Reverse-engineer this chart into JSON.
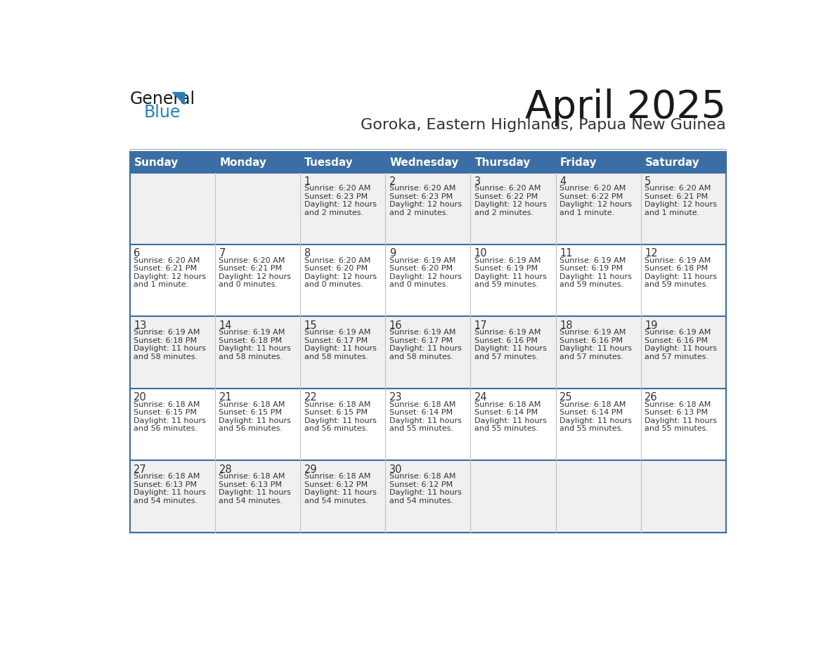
{
  "title": "April 2025",
  "subtitle": "Goroka, Eastern Highlands, Papua New Guinea",
  "header_bg_color": "#3a6ea5",
  "header_text_color": "#ffffff",
  "row_bg_colors": [
    "#f0f0f0",
    "#ffffff",
    "#f0f0f0",
    "#ffffff",
    "#f0f0f0"
  ],
  "border_color": "#3a6ea5",
  "cell_line_color": "#bbbbbb",
  "days_of_week": [
    "Sunday",
    "Monday",
    "Tuesday",
    "Wednesday",
    "Thursday",
    "Friday",
    "Saturday"
  ],
  "calendar": [
    [
      {
        "day": "",
        "lines": []
      },
      {
        "day": "",
        "lines": []
      },
      {
        "day": "1",
        "lines": [
          "Sunrise: 6:20 AM",
          "Sunset: 6:23 PM",
          "Daylight: 12 hours",
          "and 2 minutes."
        ]
      },
      {
        "day": "2",
        "lines": [
          "Sunrise: 6:20 AM",
          "Sunset: 6:23 PM",
          "Daylight: 12 hours",
          "and 2 minutes."
        ]
      },
      {
        "day": "3",
        "lines": [
          "Sunrise: 6:20 AM",
          "Sunset: 6:22 PM",
          "Daylight: 12 hours",
          "and 2 minutes."
        ]
      },
      {
        "day": "4",
        "lines": [
          "Sunrise: 6:20 AM",
          "Sunset: 6:22 PM",
          "Daylight: 12 hours",
          "and 1 minute."
        ]
      },
      {
        "day": "5",
        "lines": [
          "Sunrise: 6:20 AM",
          "Sunset: 6:21 PM",
          "Daylight: 12 hours",
          "and 1 minute."
        ]
      }
    ],
    [
      {
        "day": "6",
        "lines": [
          "Sunrise: 6:20 AM",
          "Sunset: 6:21 PM",
          "Daylight: 12 hours",
          "and 1 minute."
        ]
      },
      {
        "day": "7",
        "lines": [
          "Sunrise: 6:20 AM",
          "Sunset: 6:21 PM",
          "Daylight: 12 hours",
          "and 0 minutes."
        ]
      },
      {
        "day": "8",
        "lines": [
          "Sunrise: 6:20 AM",
          "Sunset: 6:20 PM",
          "Daylight: 12 hours",
          "and 0 minutes."
        ]
      },
      {
        "day": "9",
        "lines": [
          "Sunrise: 6:19 AM",
          "Sunset: 6:20 PM",
          "Daylight: 12 hours",
          "and 0 minutes."
        ]
      },
      {
        "day": "10",
        "lines": [
          "Sunrise: 6:19 AM",
          "Sunset: 6:19 PM",
          "Daylight: 11 hours",
          "and 59 minutes."
        ]
      },
      {
        "day": "11",
        "lines": [
          "Sunrise: 6:19 AM",
          "Sunset: 6:19 PM",
          "Daylight: 11 hours",
          "and 59 minutes."
        ]
      },
      {
        "day": "12",
        "lines": [
          "Sunrise: 6:19 AM",
          "Sunset: 6:18 PM",
          "Daylight: 11 hours",
          "and 59 minutes."
        ]
      }
    ],
    [
      {
        "day": "13",
        "lines": [
          "Sunrise: 6:19 AM",
          "Sunset: 6:18 PM",
          "Daylight: 11 hours",
          "and 58 minutes."
        ]
      },
      {
        "day": "14",
        "lines": [
          "Sunrise: 6:19 AM",
          "Sunset: 6:18 PM",
          "Daylight: 11 hours",
          "and 58 minutes."
        ]
      },
      {
        "day": "15",
        "lines": [
          "Sunrise: 6:19 AM",
          "Sunset: 6:17 PM",
          "Daylight: 11 hours",
          "and 58 minutes."
        ]
      },
      {
        "day": "16",
        "lines": [
          "Sunrise: 6:19 AM",
          "Sunset: 6:17 PM",
          "Daylight: 11 hours",
          "and 58 minutes."
        ]
      },
      {
        "day": "17",
        "lines": [
          "Sunrise: 6:19 AM",
          "Sunset: 6:16 PM",
          "Daylight: 11 hours",
          "and 57 minutes."
        ]
      },
      {
        "day": "18",
        "lines": [
          "Sunrise: 6:19 AM",
          "Sunset: 6:16 PM",
          "Daylight: 11 hours",
          "and 57 minutes."
        ]
      },
      {
        "day": "19",
        "lines": [
          "Sunrise: 6:19 AM",
          "Sunset: 6:16 PM",
          "Daylight: 11 hours",
          "and 57 minutes."
        ]
      }
    ],
    [
      {
        "day": "20",
        "lines": [
          "Sunrise: 6:18 AM",
          "Sunset: 6:15 PM",
          "Daylight: 11 hours",
          "and 56 minutes."
        ]
      },
      {
        "day": "21",
        "lines": [
          "Sunrise: 6:18 AM",
          "Sunset: 6:15 PM",
          "Daylight: 11 hours",
          "and 56 minutes."
        ]
      },
      {
        "day": "22",
        "lines": [
          "Sunrise: 6:18 AM",
          "Sunset: 6:15 PM",
          "Daylight: 11 hours",
          "and 56 minutes."
        ]
      },
      {
        "day": "23",
        "lines": [
          "Sunrise: 6:18 AM",
          "Sunset: 6:14 PM",
          "Daylight: 11 hours",
          "and 55 minutes."
        ]
      },
      {
        "day": "24",
        "lines": [
          "Sunrise: 6:18 AM",
          "Sunset: 6:14 PM",
          "Daylight: 11 hours",
          "and 55 minutes."
        ]
      },
      {
        "day": "25",
        "lines": [
          "Sunrise: 6:18 AM",
          "Sunset: 6:14 PM",
          "Daylight: 11 hours",
          "and 55 minutes."
        ]
      },
      {
        "day": "26",
        "lines": [
          "Sunrise: 6:18 AM",
          "Sunset: 6:13 PM",
          "Daylight: 11 hours",
          "and 55 minutes."
        ]
      }
    ],
    [
      {
        "day": "27",
        "lines": [
          "Sunrise: 6:18 AM",
          "Sunset: 6:13 PM",
          "Daylight: 11 hours",
          "and 54 minutes."
        ]
      },
      {
        "day": "28",
        "lines": [
          "Sunrise: 6:18 AM",
          "Sunset: 6:13 PM",
          "Daylight: 11 hours",
          "and 54 minutes."
        ]
      },
      {
        "day": "29",
        "lines": [
          "Sunrise: 6:18 AM",
          "Sunset: 6:12 PM",
          "Daylight: 11 hours",
          "and 54 minutes."
        ]
      },
      {
        "day": "30",
        "lines": [
          "Sunrise: 6:18 AM",
          "Sunset: 6:12 PM",
          "Daylight: 11 hours",
          "and 54 minutes."
        ]
      },
      {
        "day": "",
        "lines": []
      },
      {
        "day": "",
        "lines": []
      },
      {
        "day": "",
        "lines": []
      }
    ]
  ],
  "logo_color_general": "#1a1a1a",
  "logo_color_blue": "#2980b9",
  "logo_triangle_color": "#2980b9"
}
